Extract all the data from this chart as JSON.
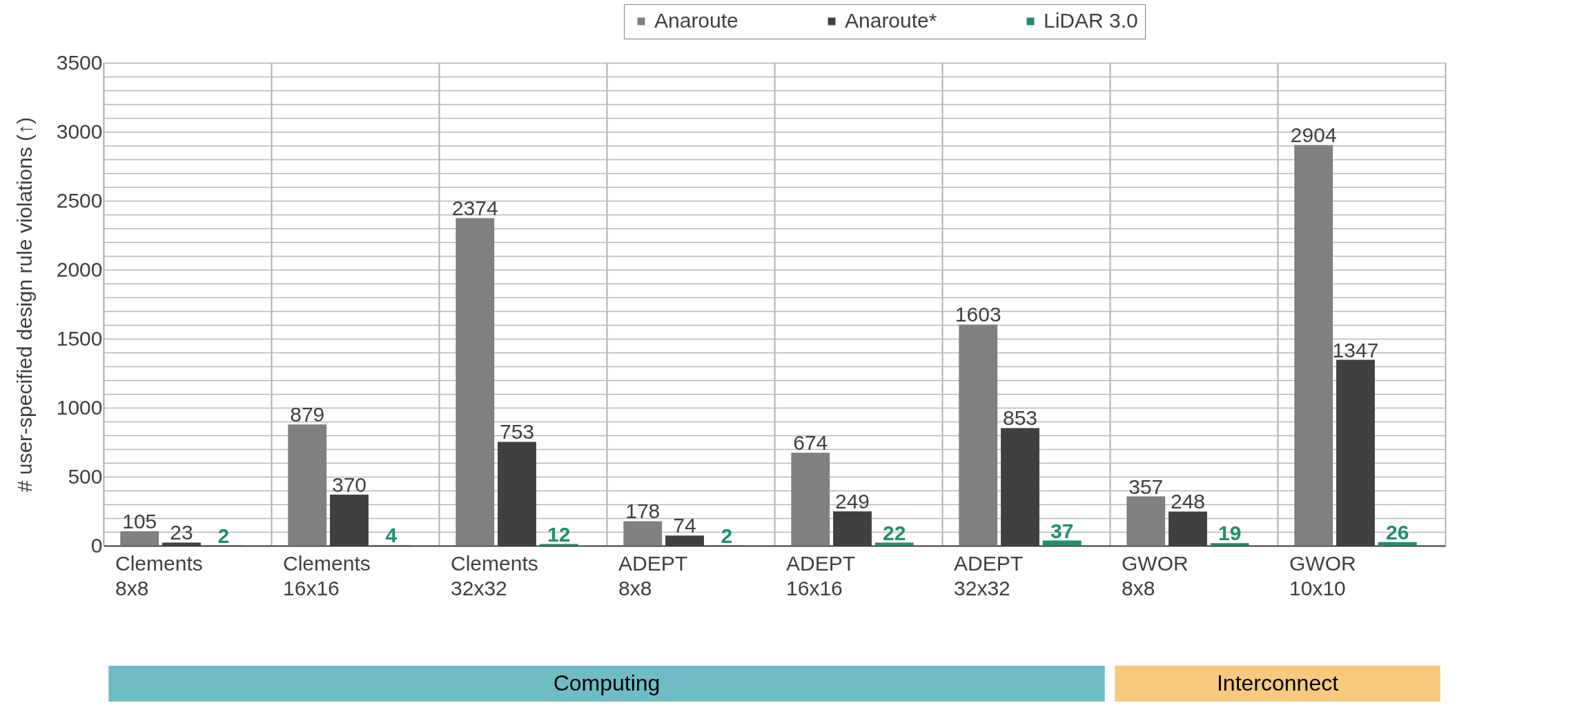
{
  "chart_data": {
    "type": "bar",
    "ylabel": "# user-specified design rule violations (↑)",
    "categories": [
      "Clements 8x8",
      "Clements 16x16",
      "Clements 32x32",
      "ADEPT 8x8",
      "ADEPT 16x16",
      "ADEPT 32x32",
      "GWOR 8x8",
      "GWOR 10x10"
    ],
    "series": [
      {
        "name": "Anaroute",
        "color": "#808080",
        "values": [
          105,
          879,
          2374,
          178,
          674,
          1603,
          357,
          2904
        ]
      },
      {
        "name": "Anaroute*",
        "color": "#404040",
        "values": [
          23,
          370,
          753,
          74,
          249,
          853,
          248,
          1347
        ]
      },
      {
        "name": "LiDAR 3.0",
        "color": "#1f8f6f",
        "values": [
          2,
          4,
          12,
          2,
          22,
          37,
          19,
          26
        ]
      }
    ],
    "ylim": [
      0,
      3500
    ],
    "yticks": [
      0,
      {
        "value": 100,
        "label": null
      },
      {
        "value": 200,
        "label": null
      },
      {
        "value": 300,
        "label": null
      },
      {
        "value": 400,
        "label": null
      },
      500,
      {
        "value": 600,
        "label": null
      },
      {
        "value": 700,
        "label": null
      },
      {
        "value": 800,
        "label": null
      },
      {
        "value": 900,
        "label": null
      },
      1000,
      {
        "value": 1100,
        "label": null
      },
      {
        "value": 1200,
        "label": null
      },
      {
        "value": 1300,
        "label": null
      },
      {
        "value": 1400,
        "label": null
      },
      1500,
      {
        "value": 1600,
        "label": null
      },
      {
        "value": 1700,
        "label": null
      },
      {
        "value": 1800,
        "label": null
      },
      {
        "value": 1900,
        "label": null
      },
      2000,
      {
        "value": 2100,
        "label": null
      },
      {
        "value": 2200,
        "label": null
      },
      {
        "value": 2300,
        "label": null
      },
      {
        "value": 2400,
        "label": null
      },
      2500,
      {
        "value": 2600,
        "label": null
      },
      {
        "value": 2700,
        "label": null
      },
      {
        "value": 2800,
        "label": null
      },
      {
        "value": 2900,
        "label": null
      },
      3000,
      {
        "value": 3100,
        "label": null
      },
      {
        "value": 3200,
        "label": null
      },
      {
        "value": 3300,
        "label": null
      },
      {
        "value": 3400,
        "label": null
      },
      3500
    ],
    "grid": true,
    "legend": "top right",
    "data_labels": true,
    "annotations": [
      "Computing",
      "Interconnect"
    ]
  }
}
